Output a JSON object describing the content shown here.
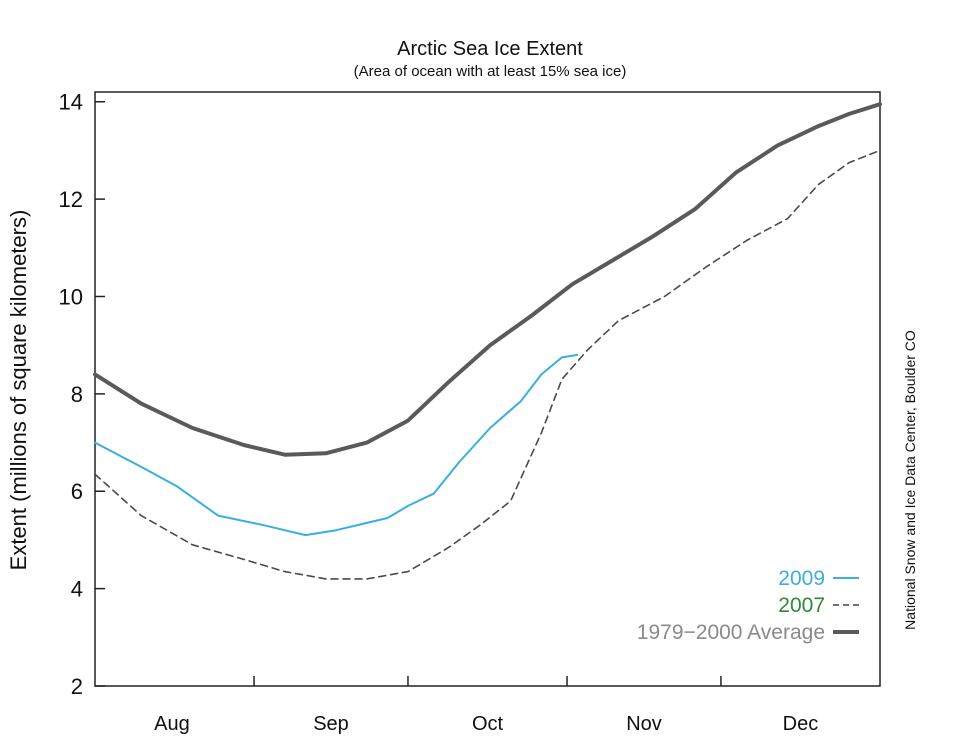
{
  "chart_data": {
    "type": "line",
    "title": "Arctic Sea Ice Extent",
    "subtitle": "(Area of ocean with at least 15% sea ice)",
    "ylabel": "Extent (millions of square kilometers)",
    "xlabel": "",
    "ylim": [
      2,
      14.2
    ],
    "yticks": [
      2,
      4,
      6,
      8,
      10,
      12,
      14
    ],
    "yticks_labels": [
      "2",
      "4",
      "6",
      "8",
      "10",
      "12",
      "14"
    ],
    "xlim": [
      1,
      154
    ],
    "month_boundaries": [
      32,
      62,
      93,
      123
    ],
    "month_labels": [
      {
        "label": "Aug",
        "center": 16
      },
      {
        "label": "Sep",
        "center": 47
      },
      {
        "label": "Oct",
        "center": 77.5
      },
      {
        "label": "Nov",
        "center": 108
      },
      {
        "label": "Dec",
        "center": 138.5
      }
    ],
    "series": [
      {
        "name": "1979−2000 Average",
        "color": "#5a5a5a",
        "style": "solid-thick",
        "x": [
          1,
          10,
          20,
          30,
          38,
          46,
          54,
          62,
          70,
          78,
          86,
          94,
          102,
          110,
          118,
          126,
          134,
          142,
          148,
          154
        ],
        "y": [
          8.4,
          7.8,
          7.3,
          6.95,
          6.75,
          6.78,
          7.0,
          7.45,
          8.25,
          9.0,
          9.6,
          10.25,
          10.75,
          11.25,
          11.8,
          12.55,
          13.1,
          13.5,
          13.75,
          13.95
        ]
      },
      {
        "name": "2009",
        "color": "#3aaee0",
        "style": "solid",
        "x": [
          1,
          10,
          17,
          25,
          34,
          42,
          48,
          54,
          58,
          62,
          67,
          72,
          78,
          84,
          88,
          92,
          95
        ],
        "y": [
          7.0,
          6.5,
          6.1,
          5.5,
          5.3,
          5.1,
          5.2,
          5.35,
          5.45,
          5.7,
          5.95,
          6.6,
          7.3,
          7.85,
          8.4,
          8.75,
          8.8
        ]
      },
      {
        "name": "2007",
        "color": "#4a4a4a",
        "style": "dashed",
        "x": [
          1,
          10,
          20,
          30,
          38,
          46,
          54,
          62,
          70,
          76,
          82,
          88,
          92,
          97,
          103,
          112,
          120,
          128,
          136,
          142,
          148,
          154
        ],
        "y": [
          6.35,
          5.5,
          4.9,
          4.6,
          4.35,
          4.2,
          4.2,
          4.35,
          4.85,
          5.3,
          5.8,
          7.2,
          8.3,
          8.9,
          9.5,
          10.0,
          10.6,
          11.15,
          11.6,
          12.3,
          12.75,
          13.0
        ]
      }
    ],
    "legend": {
      "placement": "bottom-right",
      "items": [
        {
          "label": "2009",
          "color": "#3aaee0",
          "text_color": "#3aaee0",
          "style": "solid"
        },
        {
          "label": "2007",
          "color": "#444444",
          "text_color": "#2e8a3a",
          "style": "dashed"
        },
        {
          "label": "1979−2000 Average",
          "color": "#5a5a5a",
          "text_color": "#8a8a8a",
          "style": "solid-thick"
        }
      ]
    },
    "credit": "National Snow and Ice Data Center, Boulder CO"
  }
}
